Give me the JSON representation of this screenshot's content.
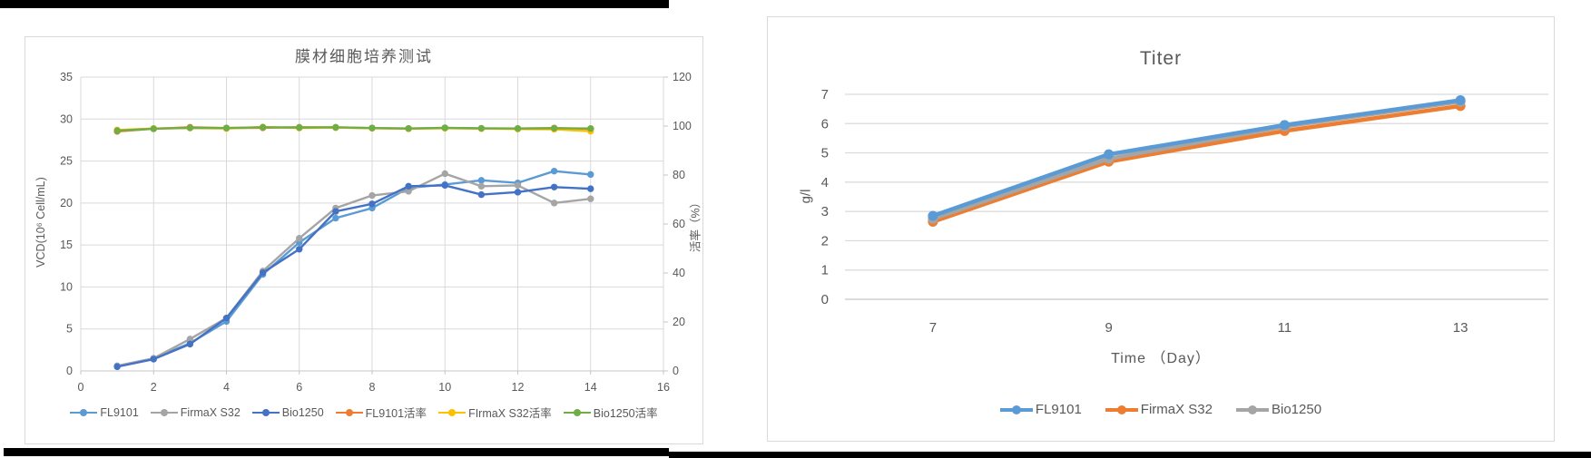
{
  "chart_data": [
    {
      "type": "line",
      "title": "膜材细胞培养测试",
      "ylabel_left": "VCD(10⁶ Cell/mL)",
      "ylabel_right": "活率（%）",
      "x_range": [
        0,
        16
      ],
      "x_ticks": [
        0,
        2,
        4,
        6,
        8,
        10,
        12,
        14,
        16
      ],
      "y_left_range": [
        0,
        35
      ],
      "y_left_ticks": [
        0,
        5,
        10,
        15,
        20,
        25,
        30,
        35
      ],
      "y_right_range": [
        0,
        120
      ],
      "y_right_ticks": [
        0,
        20,
        40,
        60,
        80,
        100,
        120
      ],
      "grid": true,
      "legend_position": "bottom",
      "x": [
        1,
        2,
        3,
        4,
        5,
        6,
        7,
        8,
        9,
        10,
        11,
        12,
        13,
        14
      ],
      "series": [
        {
          "name": "FL9101",
          "axis": "left",
          "color": "#5B9BD5",
          "values": [
            0.6,
            1.5,
            3.3,
            5.9,
            11.5,
            15.3,
            18.2,
            19.4,
            21.8,
            22.2,
            22.7,
            22.4,
            23.8,
            23.4
          ]
        },
        {
          "name": "FirmaX S32",
          "axis": "left",
          "color": "#A5A5A5",
          "values": [
            0.6,
            1.5,
            3.8,
            6.3,
            11.9,
            15.8,
            19.4,
            20.9,
            21.4,
            23.5,
            22.0,
            22.1,
            20.0,
            20.5
          ]
        },
        {
          "name": "Bio1250",
          "axis": "left",
          "color": "#4472C4",
          "values": [
            0.5,
            1.4,
            3.2,
            6.3,
            11.7,
            14.5,
            19.0,
            19.9,
            22.0,
            22.1,
            21.0,
            21.3,
            21.9,
            21.7
          ]
        },
        {
          "name": "FL9101活率",
          "axis": "right",
          "color": "#ED7D31",
          "values": [
            97.8,
            98.9,
            99.5,
            99.2,
            99.3,
            99.5,
            99.4,
            99.2,
            99.0,
            99.2,
            99.0,
            99.0,
            99.2,
            98.8
          ]
        },
        {
          "name": "FIrmaX S32活率",
          "axis": "right",
          "color": "#FFC000",
          "values": [
            98.4,
            99.0,
            99.2,
            99.0,
            99.6,
            99.2,
            99.4,
            99.1,
            98.9,
            99.1,
            99.0,
            98.8,
            98.7,
            97.9
          ]
        },
        {
          "name": "Bio1250活率",
          "axis": "right",
          "color": "#70AD47",
          "values": [
            98.1,
            98.9,
            99.3,
            99.2,
            99.5,
            99.4,
            99.5,
            99.2,
            99.0,
            99.3,
            99.1,
            99.0,
            99.1,
            99.0
          ]
        }
      ]
    },
    {
      "type": "line",
      "title": "Titer",
      "xlabel": "Time （Day）",
      "ylabel": "g/l",
      "categories": [
        7,
        9,
        11,
        13
      ],
      "y_range": [
        0,
        7
      ],
      "y_ticks": [
        0,
        1,
        2,
        3,
        4,
        5,
        6,
        7
      ],
      "grid": true,
      "legend_position": "bottom",
      "series": [
        {
          "name": "FL9101",
          "color": "#5B9BD5",
          "values": [
            2.85,
            4.95,
            5.95,
            6.8
          ]
        },
        {
          "name": "FirmaX S32",
          "color": "#ED7D31",
          "values": [
            2.65,
            4.7,
            5.75,
            6.6
          ]
        },
        {
          "name": "Bio1250",
          "color": "#A5A5A5",
          "values": [
            2.75,
            4.8,
            5.9,
            6.75
          ]
        }
      ]
    }
  ],
  "colors": {
    "gridline": "#d9d9d9",
    "axis_line": "#c6c6c6",
    "text": "#595959"
  }
}
